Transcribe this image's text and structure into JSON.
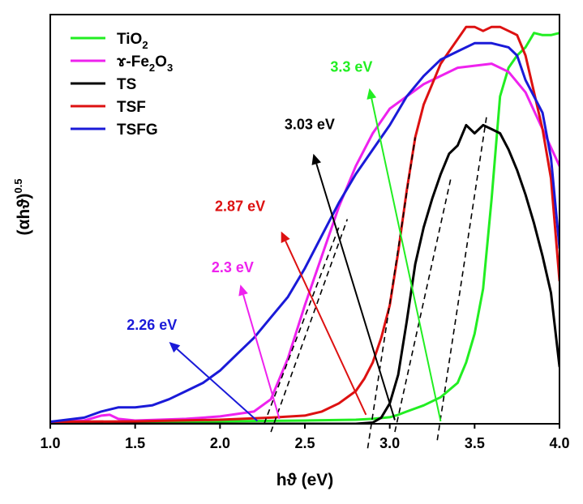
{
  "chart_data": {
    "type": "line",
    "title": "",
    "xlabel": "hϑ (eV)",
    "ylabel": "(αhϑ)",
    "ylabel_superscript": "0.5",
    "xlim": [
      1.0,
      4.0
    ],
    "ylim": [
      0,
      1.0
    ],
    "xticks": [
      "1.0",
      "1.5",
      "2.0",
      "2.5",
      "3.0",
      "3.5",
      "4.0"
    ],
    "grid": false,
    "legend_position": "top-left",
    "legend": [
      {
        "key": "TiO2",
        "prefix": "TiO",
        "sub1": "2",
        "mid": "",
        "sub2": ""
      },
      {
        "key": "Fe2O3",
        "prefix": "ɤ-Fe",
        "sub1": "2",
        "mid": "O",
        "sub2": "3"
      },
      {
        "key": "TS",
        "prefix": "TS",
        "sub1": "",
        "mid": "",
        "sub2": ""
      },
      {
        "key": "TSF",
        "prefix": "TSF",
        "sub1": "",
        "mid": "",
        "sub2": ""
      },
      {
        "key": "TSFG",
        "prefix": "TSFG",
        "sub1": "",
        "mid": "",
        "sub2": ""
      }
    ],
    "series": [
      {
        "name": "TiO2",
        "color": "#22ee22",
        "x": [
          1.0,
          1.5,
          2.0,
          2.5,
          2.8,
          2.9,
          3.0,
          3.05,
          3.1,
          3.2,
          3.3,
          3.4,
          3.45,
          3.5,
          3.55,
          3.6,
          3.65,
          3.7,
          3.75,
          3.8,
          3.85,
          3.9,
          3.95,
          4.0
        ],
        "y": [
          0.005,
          0.005,
          0.006,
          0.008,
          0.01,
          0.012,
          0.016,
          0.022,
          0.03,
          0.045,
          0.065,
          0.1,
          0.15,
          0.22,
          0.33,
          0.55,
          0.8,
          0.87,
          0.9,
          0.92,
          0.955,
          0.95,
          0.95,
          0.955
        ]
      },
      {
        "name": "ɤ-Fe2O3",
        "color": "#ee22ee",
        "x": [
          1.0,
          1.2,
          1.3,
          1.35,
          1.4,
          1.5,
          1.8,
          2.0,
          2.2,
          2.3,
          2.4,
          2.5,
          2.6,
          2.7,
          2.8,
          2.9,
          3.0,
          3.2,
          3.4,
          3.6,
          3.7,
          3.8,
          3.9,
          4.0
        ],
        "y": [
          0.005,
          0.008,
          0.02,
          0.022,
          0.012,
          0.008,
          0.012,
          0.018,
          0.03,
          0.06,
          0.16,
          0.29,
          0.41,
          0.53,
          0.63,
          0.71,
          0.77,
          0.83,
          0.87,
          0.88,
          0.86,
          0.81,
          0.72,
          0.63
        ]
      },
      {
        "name": "TS",
        "color": "#000000",
        "x": [
          1.0,
          2.0,
          2.8,
          2.9,
          2.95,
          3.0,
          3.05,
          3.1,
          3.15,
          3.2,
          3.25,
          3.3,
          3.35,
          3.4,
          3.45,
          3.5,
          3.55,
          3.6,
          3.65,
          3.7,
          3.75,
          3.8,
          3.85,
          3.9,
          3.95,
          4.0
        ],
        "y": [
          0.0,
          0.0,
          0.0,
          0.003,
          0.015,
          0.05,
          0.12,
          0.25,
          0.39,
          0.48,
          0.55,
          0.61,
          0.66,
          0.68,
          0.73,
          0.71,
          0.73,
          0.72,
          0.71,
          0.67,
          0.62,
          0.56,
          0.49,
          0.41,
          0.32,
          0.14
        ]
      },
      {
        "name": "TSF",
        "color": "#dd1111",
        "x": [
          1.0,
          1.5,
          2.0,
          2.3,
          2.5,
          2.6,
          2.7,
          2.8,
          2.85,
          2.9,
          2.95,
          3.0,
          3.05,
          3.1,
          3.15,
          3.2,
          3.25,
          3.3,
          3.35,
          3.4,
          3.45,
          3.5,
          3.55,
          3.6,
          3.65,
          3.7,
          3.75,
          3.8,
          3.85,
          3.9,
          3.95,
          4.0
        ],
        "y": [
          0.005,
          0.006,
          0.01,
          0.015,
          0.02,
          0.03,
          0.05,
          0.08,
          0.11,
          0.15,
          0.21,
          0.29,
          0.42,
          0.57,
          0.7,
          0.78,
          0.83,
          0.88,
          0.91,
          0.94,
          0.97,
          0.97,
          0.96,
          0.97,
          0.97,
          0.96,
          0.95,
          0.9,
          0.81,
          0.72,
          0.6,
          0.35
        ]
      },
      {
        "name": "TSFG",
        "color": "#1a1ad8",
        "x": [
          1.0,
          1.2,
          1.3,
          1.4,
          1.5,
          1.6,
          1.7,
          1.8,
          1.9,
          2.0,
          2.1,
          2.2,
          2.3,
          2.4,
          2.5,
          2.6,
          2.7,
          2.8,
          2.9,
          3.0,
          3.1,
          3.2,
          3.3,
          3.4,
          3.5,
          3.6,
          3.7,
          3.75,
          3.8,
          3.9,
          3.95,
          4.0
        ],
        "y": [
          0.005,
          0.015,
          0.03,
          0.04,
          0.04,
          0.045,
          0.06,
          0.08,
          0.1,
          0.13,
          0.17,
          0.21,
          0.26,
          0.31,
          0.38,
          0.46,
          0.54,
          0.61,
          0.67,
          0.73,
          0.8,
          0.85,
          0.89,
          0.91,
          0.93,
          0.93,
          0.92,
          0.9,
          0.84,
          0.76,
          0.65,
          0.43
        ]
      }
    ],
    "tangents": [
      {
        "name": "TSFG tangent",
        "x": [
          2.26,
          2.7
        ],
        "y": [
          0.0,
          0.48
        ]
      },
      {
        "name": "Fe2O3 tangent",
        "x": [
          2.3,
          2.75
        ],
        "y": [
          -0.02,
          0.5
        ]
      },
      {
        "name": "TSF tangent",
        "x": [
          2.87,
          3.15
        ],
        "y": [
          -0.06,
          0.7
        ]
      },
      {
        "name": "TS tangent",
        "x": [
          3.03,
          3.36
        ],
        "y": [
          -0.02,
          0.6
        ]
      },
      {
        "name": "TiO2 tangent",
        "x": [
          3.28,
          3.57
        ],
        "y": [
          -0.04,
          0.75
        ]
      }
    ],
    "annotations": [
      {
        "text": "2.26 eV",
        "color": "#1a1ad8",
        "from": [
          2.22,
          0.007
        ],
        "to": [
          1.7,
          0.2
        ],
        "label_pos": [
          1.45,
          0.23
        ]
      },
      {
        "text": "2.3 eV",
        "color": "#ee22ee",
        "from": [
          2.35,
          0.012
        ],
        "to": [
          2.12,
          0.34
        ],
        "label_pos": [
          1.95,
          0.37
        ]
      },
      {
        "text": "2.87 eV",
        "color": "#dd1111",
        "from": [
          2.86,
          0.022
        ],
        "to": [
          2.36,
          0.47
        ],
        "label_pos": [
          1.97,
          0.52
        ]
      },
      {
        "text": "3.03 eV",
        "color": "#000000",
        "from": [
          3.03,
          0.009
        ],
        "to": [
          2.55,
          0.66
        ],
        "label_pos": [
          2.38,
          0.72
        ]
      },
      {
        "text": "3.3 eV",
        "color": "#22ee22",
        "from": [
          3.3,
          0.006
        ],
        "to": [
          2.88,
          0.82
        ],
        "label_pos": [
          2.65,
          0.86
        ]
      }
    ]
  }
}
